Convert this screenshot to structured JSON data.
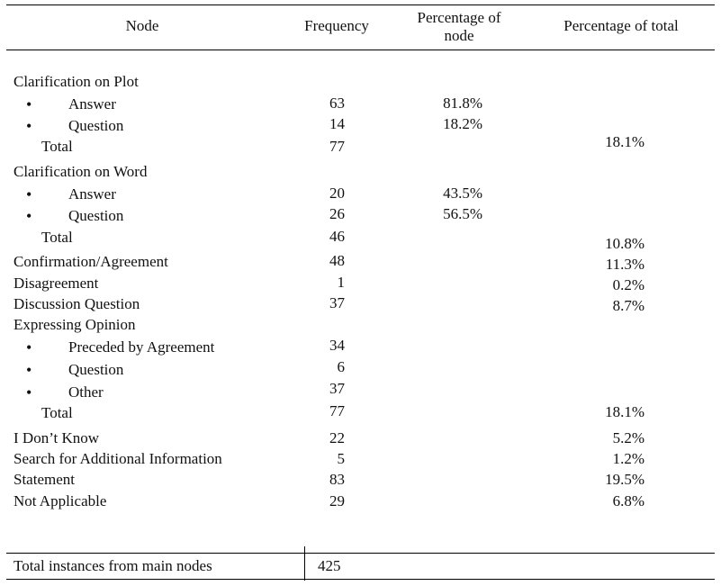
{
  "headers": {
    "node": "Node",
    "frequency": "Frequency",
    "percentage_of_node_line1": "Percentage of",
    "percentage_of_node_line2": "node",
    "percentage_of_total": "Percentage of total"
  },
  "groups": {
    "clarification_plot": {
      "label": "Clarification on Plot",
      "answer": {
        "bullet": "•",
        "label": "Answer",
        "frequency": "63",
        "pct_node": "81.8%"
      },
      "question": {
        "bullet": "•",
        "label": "Question",
        "frequency": "14",
        "pct_node": "18.2%"
      },
      "total": {
        "label": "Total",
        "frequency": "77",
        "pct_total": "18.1%"
      }
    },
    "clarification_word": {
      "label": "Clarification on Word",
      "answer": {
        "bullet": "•",
        "label": "Answer",
        "frequency": "20",
        "pct_node": "43.5%"
      },
      "question": {
        "bullet": "•",
        "label": "Question",
        "frequency": "26",
        "pct_node": "56.5%"
      },
      "total": {
        "label": "Total",
        "frequency": "46",
        "pct_total": "10.8%"
      }
    },
    "confirmation": {
      "label": "Confirmation/Agreement",
      "frequency": "48",
      "pct_total": "11.3%"
    },
    "disagreement": {
      "label": "Disagreement",
      "frequency": "1",
      "pct_total": "0.2%"
    },
    "discussion_question": {
      "label": "Discussion Question",
      "frequency": "37",
      "pct_total": "8.7%"
    },
    "expressing_opinion": {
      "label": "Expressing Opinion",
      "preceded": {
        "bullet": "•",
        "label": "Preceded by Agreement",
        "frequency": "34"
      },
      "question": {
        "bullet": "•",
        "label": "Question",
        "frequency": "6"
      },
      "other": {
        "bullet": "•",
        "label": "Other",
        "frequency": "37"
      },
      "total": {
        "label": "Total",
        "frequency": "77",
        "pct_total": "18.1%"
      }
    },
    "dont_know": {
      "label": "I Don’t Know",
      "frequency": "22",
      "pct_total": "5.2%"
    },
    "search_info": {
      "label": "Search for Additional Information",
      "frequency": "5",
      "pct_total": "1.2%"
    },
    "statement": {
      "label": "Statement",
      "frequency": "83",
      "pct_total": "19.5%"
    },
    "not_applicable": {
      "label": "Not Applicable",
      "frequency": "29",
      "pct_total": "6.8%"
    }
  },
  "footer": {
    "label": "Total instances from main nodes",
    "value": "425"
  }
}
